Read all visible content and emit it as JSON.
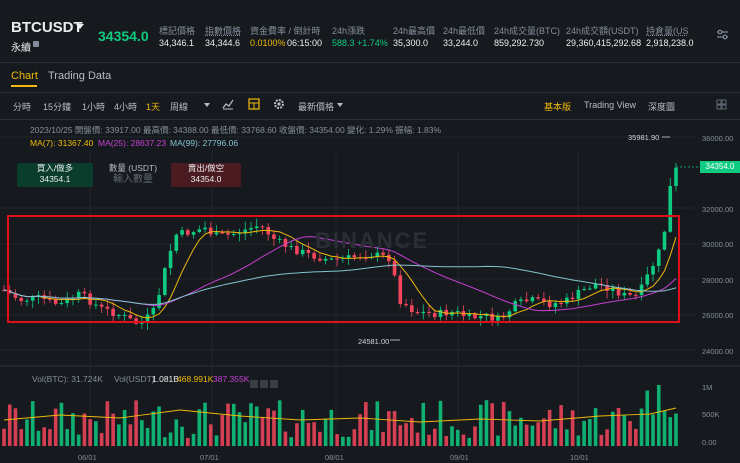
{
  "header": {
    "symbol": "BTCUSDT",
    "sub": "永續",
    "last_price": "34354.0",
    "stats": [
      {
        "label": "標記價格",
        "value": "34,346.1",
        "underline": false
      },
      {
        "label": "指數價格",
        "value": "34,344.6",
        "underline": true
      },
      {
        "label": "資金費率 / 倒計時",
        "value": "0.0100%",
        "value2": "06:15:00",
        "underline": false
      },
      {
        "label": "24h漲跌",
        "value": "588.3 +1.74%",
        "underline": false,
        "up": true
      },
      {
        "label": "24h最高價",
        "value": "35,300.0",
        "underline": false
      },
      {
        "label": "24h最低價",
        "value": "33,244.0",
        "underline": false
      },
      {
        "label": "24h成交量(BTC)",
        "value": "859,292.730",
        "underline": false
      },
      {
        "label": "24h成交額(USDT)",
        "value": "29,360,415,292.68",
        "underline": false
      },
      {
        "label": "持倉量(US",
        "value": "2,918,238.0",
        "underline": true
      }
    ]
  },
  "tabs": {
    "chart": "Chart",
    "trading_data": "Trading Data"
  },
  "toolbar": {
    "intervals": [
      "分時",
      "15分鐘",
      "1小時",
      "4小時",
      "1天",
      "周線"
    ],
    "active_interval": "1天",
    "price_type": "最新價格",
    "views": [
      "基本版",
      "Trading View",
      "深度圖"
    ],
    "active_view": "基本版"
  },
  "info": {
    "ohlc": "2023/10/25  開盤價: 33917.00  最高價: 34388.00  最低價: 33768.60  收盤價: 34354.00  變化: 1.29%  振幅: 1.83%",
    "ma7_label": "MA(7): 31367.40",
    "ma25_label": "MA(25): 28637.23",
    "ma99_label": "MA(99): 27796.06"
  },
  "trade": {
    "buy_label": "買入/做多",
    "buy_price": "34354.1",
    "qty_label": "數量 (USDT)",
    "qty_placeholder": "輸入數量",
    "sell_label": "賣出/做空",
    "sell_price": "34354.0"
  },
  "watermark": "BINANCE",
  "annotations": {
    "high": "35981.90",
    "low": "24581.00"
  },
  "price_axis": [
    "36000.00",
    "32000.00",
    "30000.00",
    "28000.00",
    "26000.00",
    "24000.00"
  ],
  "last_tag": "34354.0",
  "volume": {
    "btc_label": "Vol(BTC): 31.724K",
    "usdt_label": "Vol(USDT)",
    "v1": "1.081B",
    "v2": "468.991K",
    "v3": "387.355K",
    "axis": [
      "1M",
      "500K",
      "0.00"
    ]
  },
  "x_axis": [
    "06/01",
    "07/01",
    "08/01",
    "09/01",
    "10/01"
  ],
  "colors": {
    "up": "#0ecb81",
    "down": "#f6465d",
    "accent": "#f0b90b",
    "ma7": "#f0b90b",
    "ma25": "#c53fd2",
    "ma99": "#82c4cf",
    "highlight": "#e0101a"
  }
}
